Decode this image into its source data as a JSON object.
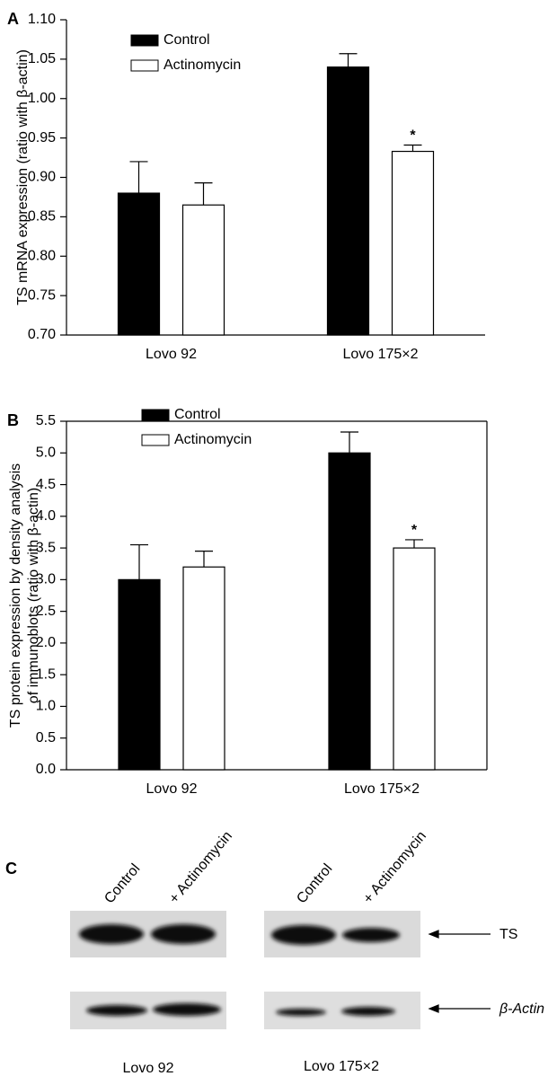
{
  "chart_data": [
    {
      "type": "bar",
      "panel": "A",
      "ylabel": [
        "TS mRNA expression (ratio with β-actin)"
      ],
      "categories": [
        "Lovo 92",
        "Lovo 175×2"
      ],
      "series": [
        {
          "name": "Control",
          "color": "#000000",
          "values": [
            0.88,
            1.04
          ],
          "errors": [
            0.04,
            0.017
          ]
        },
        {
          "name": "Actinomycin",
          "color": "#ffffff",
          "values": [
            0.865,
            0.933
          ],
          "errors": [
            0.028,
            0.008
          ]
        }
      ],
      "annotation": "*",
      "ylim": [
        0.7,
        1.1
      ],
      "yticks": [
        {
          "value": 0.7,
          "label": "0.70"
        },
        0.75,
        {
          "value": 0.8,
          "label": "0.80"
        },
        0.85,
        {
          "value": 0.9,
          "label": "0.90"
        },
        0.95,
        {
          "value": 1.0,
          "label": "1.00"
        },
        1.05,
        {
          "value": 1.1,
          "label": "1.10"
        }
      ],
      "legend": "upper left",
      "frame": false
    },
    {
      "type": "bar",
      "panel": "B",
      "ylabel": [
        "TS protein expression by density analysis",
        "of immunoblots (ratio with β-actin)"
      ],
      "categories": [
        "Lovo 92",
        "Lovo 175×2"
      ],
      "series": [
        {
          "name": "Control",
          "color": "#000000",
          "values": [
            3.0,
            5.0
          ],
          "errors": [
            0.55,
            0.33
          ]
        },
        {
          "name": "Actinomycin",
          "color": "#ffffff",
          "values": [
            3.2,
            3.5
          ],
          "errors": [
            0.25,
            0.13
          ]
        }
      ],
      "annotation": "*",
      "ylim": [
        0,
        5.5
      ],
      "yticks": [
        {
          "value": 0,
          "label": "0.0"
        },
        0.5,
        {
          "value": 1,
          "label": "1.0"
        },
        1.5,
        {
          "value": 2,
          "label": "2.0"
        },
        2.5,
        {
          "value": 3,
          "label": "3.0"
        },
        3.5,
        {
          "value": 4,
          "label": "4.0"
        },
        4.5,
        {
          "value": 5,
          "label": "5.0"
        },
        5.5
      ],
      "legend": "upper left",
      "frame": true
    }
  ],
  "blot": {
    "panel": "C",
    "lanes": [
      "Control",
      "+ Actinomycin",
      "Control",
      "+ Actinomycin"
    ],
    "bands": [
      "TS",
      "β-Actin"
    ],
    "groups": [
      "Lovo 92",
      "Lovo 175×2"
    ]
  }
}
